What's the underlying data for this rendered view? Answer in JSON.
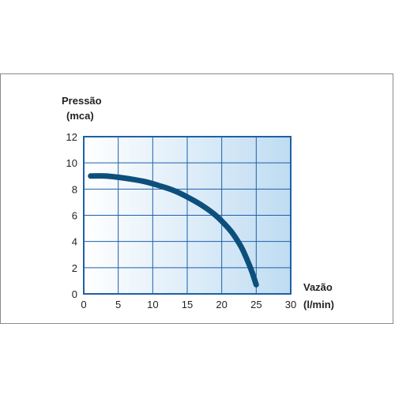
{
  "chart_data": {
    "type": "line",
    "ylabel": "Pressão",
    "yunit": "(mca)",
    "xlabel": "Vazão",
    "xunit": "(l/min)",
    "xlim": [
      0,
      30
    ],
    "ylim": [
      0,
      12
    ],
    "xticks": [
      "0",
      "5",
      "10",
      "15",
      "20",
      "25",
      "30"
    ],
    "yticks": [
      "0",
      "2",
      "4",
      "6",
      "8",
      "10",
      "12"
    ],
    "grid": true,
    "series": [
      {
        "x": [
          1,
          3,
          5,
          7,
          9,
          11,
          13,
          15,
          17,
          19,
          21,
          22,
          23,
          24,
          24.5,
          25
        ],
        "y": [
          9.0,
          9.0,
          8.9,
          8.75,
          8.55,
          8.25,
          7.9,
          7.4,
          6.8,
          6.05,
          5.0,
          4.3,
          3.4,
          2.2,
          1.5,
          0.7
        ]
      }
    ],
    "colors": {
      "line": "#0d4f7c",
      "plot_bg_left": "#ffffff",
      "plot_bg_right": "#bfdcf2",
      "grid": "#1f5fa8",
      "axis": "#1f5fa8"
    }
  }
}
